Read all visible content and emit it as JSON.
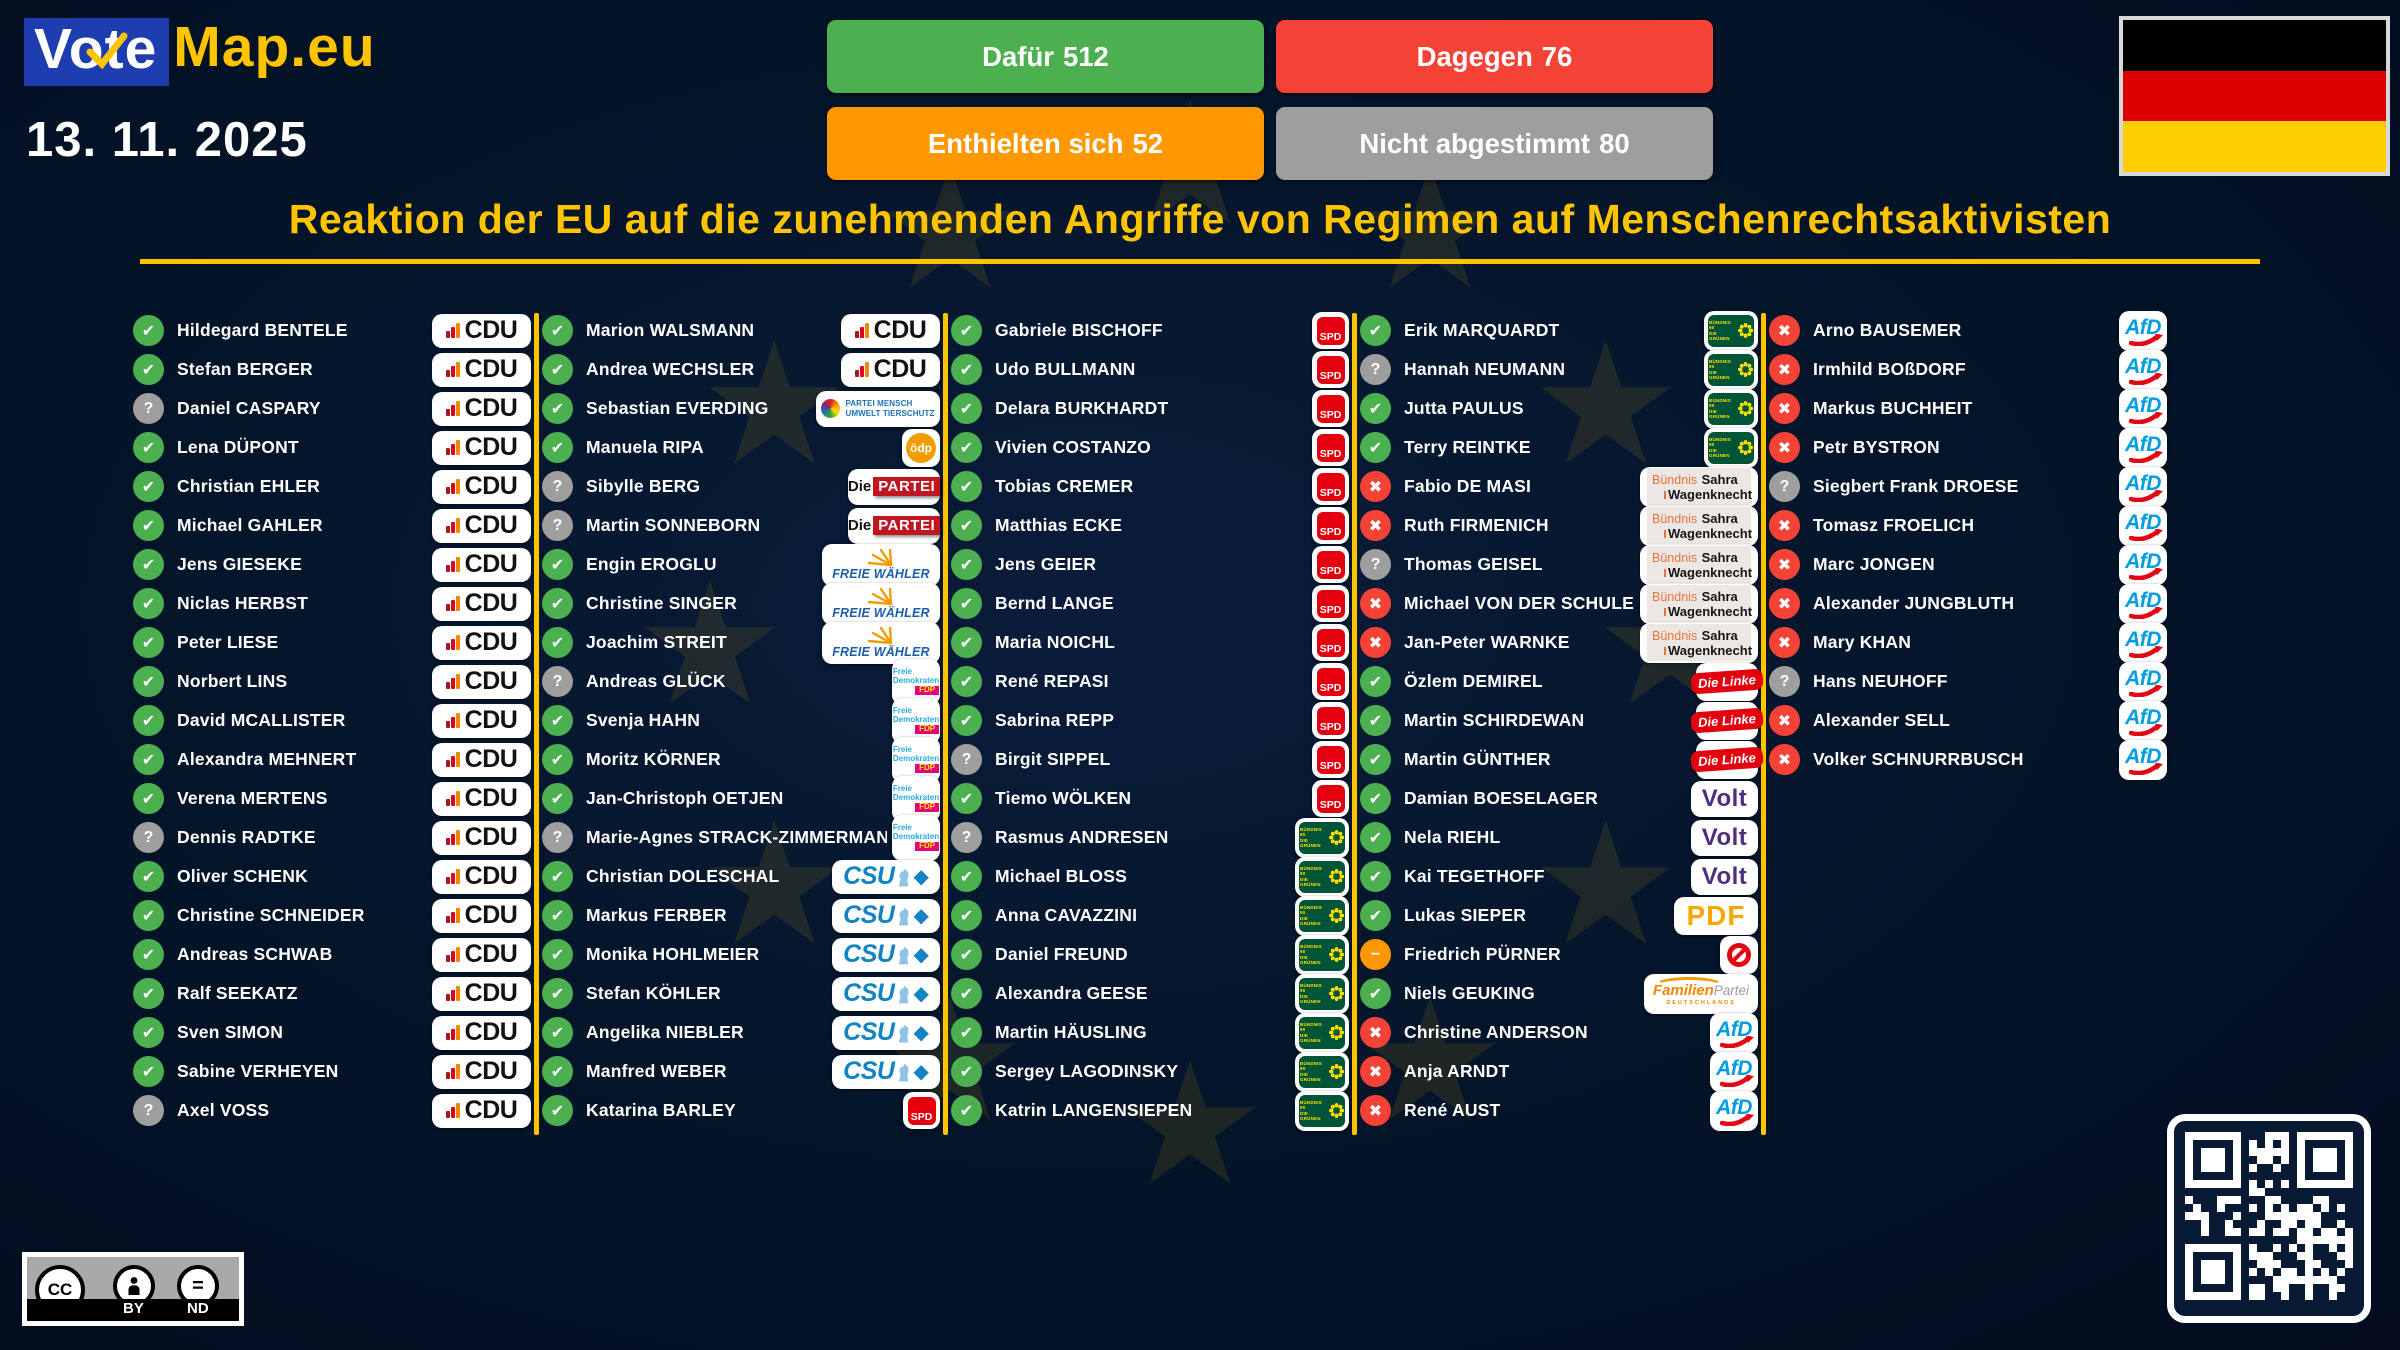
{
  "header": {
    "logo": {
      "vote": "Vote",
      "map": "Map.eu"
    },
    "date": "13. 11. 2025",
    "buttons": [
      {
        "id": "for",
        "label": "Dafür",
        "count": "512",
        "color": "#4CAF50"
      },
      {
        "id": "against",
        "label": "Dagegen",
        "count": "76",
        "color": "#F44336"
      },
      {
        "id": "abstain",
        "label": "Enthielten sich",
        "count": "52",
        "color": "#FF9800"
      },
      {
        "id": "novote",
        "label": "Nicht abgestimmt",
        "count": "80",
        "color": "#9E9E9E"
      }
    ],
    "title": "Reaktion der EU auf die zunehmenden Angriffe von Regimen auf Menschenrechtsaktivisten"
  },
  "flag": {
    "country": "Deutschland",
    "stripes": [
      "#000000",
      "#DD0000",
      "#FFCE00"
    ]
  },
  "license": {
    "cc": "CC",
    "by": "BY",
    "nd": "ND"
  },
  "colors": {
    "accent_gold": "#FFC400",
    "for": "#4CAF50",
    "against": "#F44336",
    "abstain": "#FF9800",
    "none": "#9E9E9E",
    "background": "#041428"
  },
  "status_glyphs": {
    "for": "✔",
    "against": "✖",
    "none": "?",
    "abstain": "−"
  },
  "parties": {
    "cdu": {
      "label": "CDU"
    },
    "csu": {
      "label": "CSU"
    },
    "spd": {
      "label": "SPD"
    },
    "gruene": {
      "line1": "BÜNDNIS 90",
      "line2": "DIE GRÜNEN"
    },
    "tierschutz": {
      "line1": "PARTEI MENSCH",
      "line2": "UMWELT TIERSCHUTZ"
    },
    "oedp": {
      "label": "ödp"
    },
    "partei": {
      "prefix": "Die",
      "label": "PARTEI"
    },
    "fw": {
      "label": "FREIE WÄHLER"
    },
    "fdp": {
      "line1": "Freie",
      "line2": "Demokraten",
      "label": "FDP"
    },
    "bsw": {
      "word1": "Bündnis",
      "word2": "Sahra",
      "word3": "Wagenknecht"
    },
    "linke": {
      "label": "Die Linke"
    },
    "volt": {
      "label": "Volt"
    },
    "pdf": {
      "label": "PDF"
    },
    "ban": {
      "label": ""
    },
    "familie": {
      "word1": "Familien",
      "word2": "Partei",
      "word3": "DEUTSCHLANDS"
    },
    "afd": {
      "label": "AfD"
    }
  },
  "columns": [
    [
      {
        "name": "Hildegard BENTELE",
        "party": "cdu",
        "vote": "for"
      },
      {
        "name": "Stefan BERGER",
        "party": "cdu",
        "vote": "for"
      },
      {
        "name": "Daniel CASPARY",
        "party": "cdu",
        "vote": "none"
      },
      {
        "name": "Lena DÜPONT",
        "party": "cdu",
        "vote": "for"
      },
      {
        "name": "Christian EHLER",
        "party": "cdu",
        "vote": "for"
      },
      {
        "name": "Michael GAHLER",
        "party": "cdu",
        "vote": "for"
      },
      {
        "name": "Jens GIESEKE",
        "party": "cdu",
        "vote": "for"
      },
      {
        "name": "Niclas HERBST",
        "party": "cdu",
        "vote": "for"
      },
      {
        "name": "Peter LIESE",
        "party": "cdu",
        "vote": "for"
      },
      {
        "name": "Norbert LINS",
        "party": "cdu",
        "vote": "for"
      },
      {
        "name": "David MCALLISTER",
        "party": "cdu",
        "vote": "for"
      },
      {
        "name": "Alexandra MEHNERT",
        "party": "cdu",
        "vote": "for"
      },
      {
        "name": "Verena MERTENS",
        "party": "cdu",
        "vote": "for"
      },
      {
        "name": "Dennis RADTKE",
        "party": "cdu",
        "vote": "none"
      },
      {
        "name": "Oliver SCHENK",
        "party": "cdu",
        "vote": "for"
      },
      {
        "name": "Christine SCHNEIDER",
        "party": "cdu",
        "vote": "for"
      },
      {
        "name": "Andreas SCHWAB",
        "party": "cdu",
        "vote": "for"
      },
      {
        "name": "Ralf SEEKATZ",
        "party": "cdu",
        "vote": "for"
      },
      {
        "name": "Sven SIMON",
        "party": "cdu",
        "vote": "for"
      },
      {
        "name": "Sabine VERHEYEN",
        "party": "cdu",
        "vote": "for"
      },
      {
        "name": "Axel VOSS",
        "party": "cdu",
        "vote": "none"
      }
    ],
    [
      {
        "name": "Marion WALSMANN",
        "party": "cdu",
        "vote": "for"
      },
      {
        "name": "Andrea WECHSLER",
        "party": "cdu",
        "vote": "for"
      },
      {
        "name": "Sebastian EVERDING",
        "party": "tierschutz",
        "vote": "for"
      },
      {
        "name": "Manuela RIPA",
        "party": "oedp",
        "vote": "for"
      },
      {
        "name": "Sibylle BERG",
        "party": "partei",
        "vote": "none"
      },
      {
        "name": "Martin SONNEBORN",
        "party": "partei",
        "vote": "none"
      },
      {
        "name": "Engin EROGLU",
        "party": "fw",
        "vote": "for"
      },
      {
        "name": "Christine SINGER",
        "party": "fw",
        "vote": "for"
      },
      {
        "name": "Joachim STREIT",
        "party": "fw",
        "vote": "for"
      },
      {
        "name": "Andreas GLÜCK",
        "party": "fdp",
        "vote": "none"
      },
      {
        "name": "Svenja HAHN",
        "party": "fdp",
        "vote": "for"
      },
      {
        "name": "Moritz KÖRNER",
        "party": "fdp",
        "vote": "for"
      },
      {
        "name": "Jan-Christoph OETJEN",
        "party": "fdp",
        "vote": "for"
      },
      {
        "name": "Marie-Agnes STRACK-ZIMMERMANN",
        "party": "fdp",
        "vote": "none"
      },
      {
        "name": "Christian DOLESCHAL",
        "party": "csu",
        "vote": "for"
      },
      {
        "name": "Markus FERBER",
        "party": "csu",
        "vote": "for"
      },
      {
        "name": "Monika HOHLMEIER",
        "party": "csu",
        "vote": "for"
      },
      {
        "name": "Stefan KÖHLER",
        "party": "csu",
        "vote": "for"
      },
      {
        "name": "Angelika NIEBLER",
        "party": "csu",
        "vote": "for"
      },
      {
        "name": "Manfred WEBER",
        "party": "csu",
        "vote": "for"
      },
      {
        "name": "Katarina BARLEY",
        "party": "spd",
        "vote": "for"
      }
    ],
    [
      {
        "name": "Gabriele BISCHOFF",
        "party": "spd",
        "vote": "for"
      },
      {
        "name": "Udo BULLMANN",
        "party": "spd",
        "vote": "for"
      },
      {
        "name": "Delara BURKHARDT",
        "party": "spd",
        "vote": "for"
      },
      {
        "name": "Vivien COSTANZO",
        "party": "spd",
        "vote": "for"
      },
      {
        "name": "Tobias CREMER",
        "party": "spd",
        "vote": "for"
      },
      {
        "name": "Matthias ECKE",
        "party": "spd",
        "vote": "for"
      },
      {
        "name": "Jens GEIER",
        "party": "spd",
        "vote": "for"
      },
      {
        "name": "Bernd LANGE",
        "party": "spd",
        "vote": "for"
      },
      {
        "name": "Maria NOICHL",
        "party": "spd",
        "vote": "for"
      },
      {
        "name": "René REPASI",
        "party": "spd",
        "vote": "for"
      },
      {
        "name": "Sabrina REPP",
        "party": "spd",
        "vote": "for"
      },
      {
        "name": "Birgit SIPPEL",
        "party": "spd",
        "vote": "none"
      },
      {
        "name": "Tiemo WÖLKEN",
        "party": "spd",
        "vote": "for"
      },
      {
        "name": "Rasmus ANDRESEN",
        "party": "gruene",
        "vote": "none"
      },
      {
        "name": "Michael BLOSS",
        "party": "gruene",
        "vote": "for"
      },
      {
        "name": "Anna CAVAZZINI",
        "party": "gruene",
        "vote": "for"
      },
      {
        "name": "Daniel FREUND",
        "party": "gruene",
        "vote": "for"
      },
      {
        "name": "Alexandra GEESE",
        "party": "gruene",
        "vote": "for"
      },
      {
        "name": "Martin HÄUSLING",
        "party": "gruene",
        "vote": "for"
      },
      {
        "name": "Sergey LAGODINSKY",
        "party": "gruene",
        "vote": "for"
      },
      {
        "name": "Katrin LANGENSIEPEN",
        "party": "gruene",
        "vote": "for"
      }
    ],
    [
      {
        "name": "Erik MARQUARDT",
        "party": "gruene",
        "vote": "for"
      },
      {
        "name": "Hannah NEUMANN",
        "party": "gruene",
        "vote": "none"
      },
      {
        "name": "Jutta PAULUS",
        "party": "gruene",
        "vote": "for"
      },
      {
        "name": "Terry REINTKE",
        "party": "gruene",
        "vote": "for"
      },
      {
        "name": "Fabio DE MASI",
        "party": "bsw",
        "vote": "against"
      },
      {
        "name": "Ruth FIRMENICH",
        "party": "bsw",
        "vote": "against"
      },
      {
        "name": "Thomas GEISEL",
        "party": "bsw",
        "vote": "none"
      },
      {
        "name": "Michael VON DER SCHULENBURG",
        "party": "bsw",
        "vote": "against"
      },
      {
        "name": "Jan-Peter WARNKE",
        "party": "bsw",
        "vote": "against"
      },
      {
        "name": "Özlem DEMIREL",
        "party": "linke",
        "vote": "for"
      },
      {
        "name": "Martin SCHIRDEWAN",
        "party": "linke",
        "vote": "for"
      },
      {
        "name": "Martin GÜNTHER",
        "party": "linke",
        "vote": "for"
      },
      {
        "name": "Damian BOESELAGER",
        "party": "volt",
        "vote": "for"
      },
      {
        "name": "Nela RIEHL",
        "party": "volt",
        "vote": "for"
      },
      {
        "name": "Kai TEGETHOFF",
        "party": "volt",
        "vote": "for"
      },
      {
        "name": "Lukas SIEPER",
        "party": "pdf",
        "vote": "for"
      },
      {
        "name": "Friedrich PÜRNER",
        "party": "ban",
        "vote": "abstain"
      },
      {
        "name": "Niels GEUKING",
        "party": "familie",
        "vote": "for"
      },
      {
        "name": "Christine ANDERSON",
        "party": "afd",
        "vote": "against"
      },
      {
        "name": "Anja ARNDT",
        "party": "afd",
        "vote": "against"
      },
      {
        "name": "René AUST",
        "party": "afd",
        "vote": "against"
      }
    ],
    [
      {
        "name": "Arno BAUSEMER",
        "party": "afd",
        "vote": "against"
      },
      {
        "name": "Irmhild BOßDORF",
        "party": "afd",
        "vote": "against"
      },
      {
        "name": "Markus BUCHHEIT",
        "party": "afd",
        "vote": "against"
      },
      {
        "name": "Petr BYSTRON",
        "party": "afd",
        "vote": "against"
      },
      {
        "name": "Siegbert Frank DROESE",
        "party": "afd",
        "vote": "none"
      },
      {
        "name": "Tomasz FROELICH",
        "party": "afd",
        "vote": "against"
      },
      {
        "name": "Marc JONGEN",
        "party": "afd",
        "vote": "against"
      },
      {
        "name": "Alexander JUNGBLUTH",
        "party": "afd",
        "vote": "against"
      },
      {
        "name": "Mary KHAN",
        "party": "afd",
        "vote": "against"
      },
      {
        "name": "Hans NEUHOFF",
        "party": "afd",
        "vote": "none"
      },
      {
        "name": "Alexander SELL",
        "party": "afd",
        "vote": "against"
      },
      {
        "name": "Volker SCHNURRBUSCH",
        "party": "afd",
        "vote": "against"
      }
    ]
  ]
}
